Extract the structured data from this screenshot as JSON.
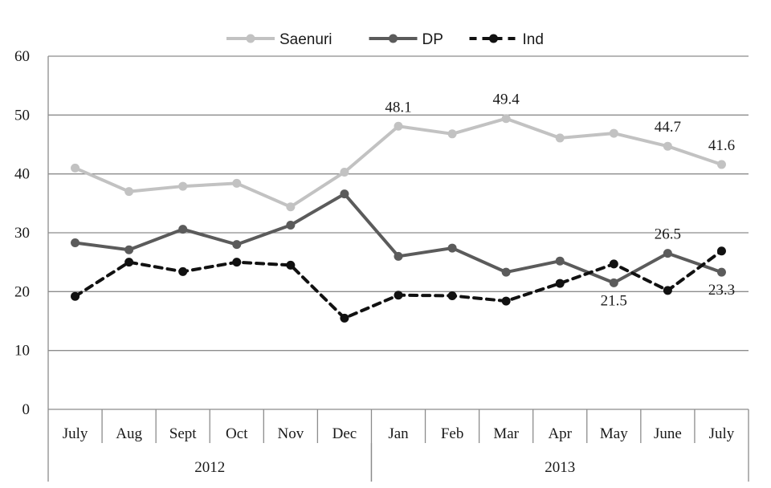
{
  "chart_data": {
    "type": "line",
    "title": "",
    "xlabel": "",
    "ylabel": "",
    "ylim": [
      0,
      60
    ],
    "yticks": [
      "0",
      "10",
      "20",
      "30",
      "40",
      "50",
      "60"
    ],
    "grid": true,
    "legend_position": "top-center",
    "categories": [
      "July",
      "Aug",
      "Sept",
      "Oct",
      "Nov",
      "Dec",
      "Jan",
      "Feb",
      "Mar",
      "Apr",
      "May",
      "June",
      "July"
    ],
    "year_groups": [
      {
        "label": "2012",
        "start": 0,
        "end": 5
      },
      {
        "label": "2013",
        "start": 6,
        "end": 12
      }
    ],
    "series": [
      {
        "name": "Saenuri",
        "color": "#c2c2c2",
        "dashed": false,
        "values": [
          41.0,
          37.0,
          37.9,
          38.4,
          34.4,
          40.3,
          48.1,
          46.8,
          49.4,
          46.1,
          46.9,
          44.7,
          41.6
        ]
      },
      {
        "name": "DP",
        "color": "#5b5b5b",
        "dashed": false,
        "values": [
          28.3,
          27.1,
          30.6,
          28.0,
          31.3,
          36.6,
          26.0,
          27.4,
          23.3,
          25.2,
          21.5,
          26.5,
          23.3
        ]
      },
      {
        "name": "Ind",
        "color": "#111111",
        "dashed": true,
        "values": [
          19.2,
          25.0,
          23.4,
          25.0,
          24.5,
          15.5,
          19.4,
          19.3,
          18.4,
          21.4,
          24.7,
          20.2,
          26.9
        ]
      }
    ],
    "annotations": [
      {
        "text": "48.1",
        "series": 0,
        "index": 6,
        "placement": "above"
      },
      {
        "text": "49.4",
        "series": 0,
        "index": 8,
        "placement": "above"
      },
      {
        "text": "44.7",
        "series": 0,
        "index": 11,
        "placement": "above"
      },
      {
        "text": "41.6",
        "series": 0,
        "index": 12,
        "placement": "above"
      },
      {
        "text": "26.5",
        "series": 1,
        "index": 11,
        "placement": "above"
      },
      {
        "text": "21.5",
        "series": 1,
        "index": 10,
        "placement": "below"
      },
      {
        "text": "23.3",
        "series": 1,
        "index": 12,
        "placement": "below"
      }
    ]
  }
}
